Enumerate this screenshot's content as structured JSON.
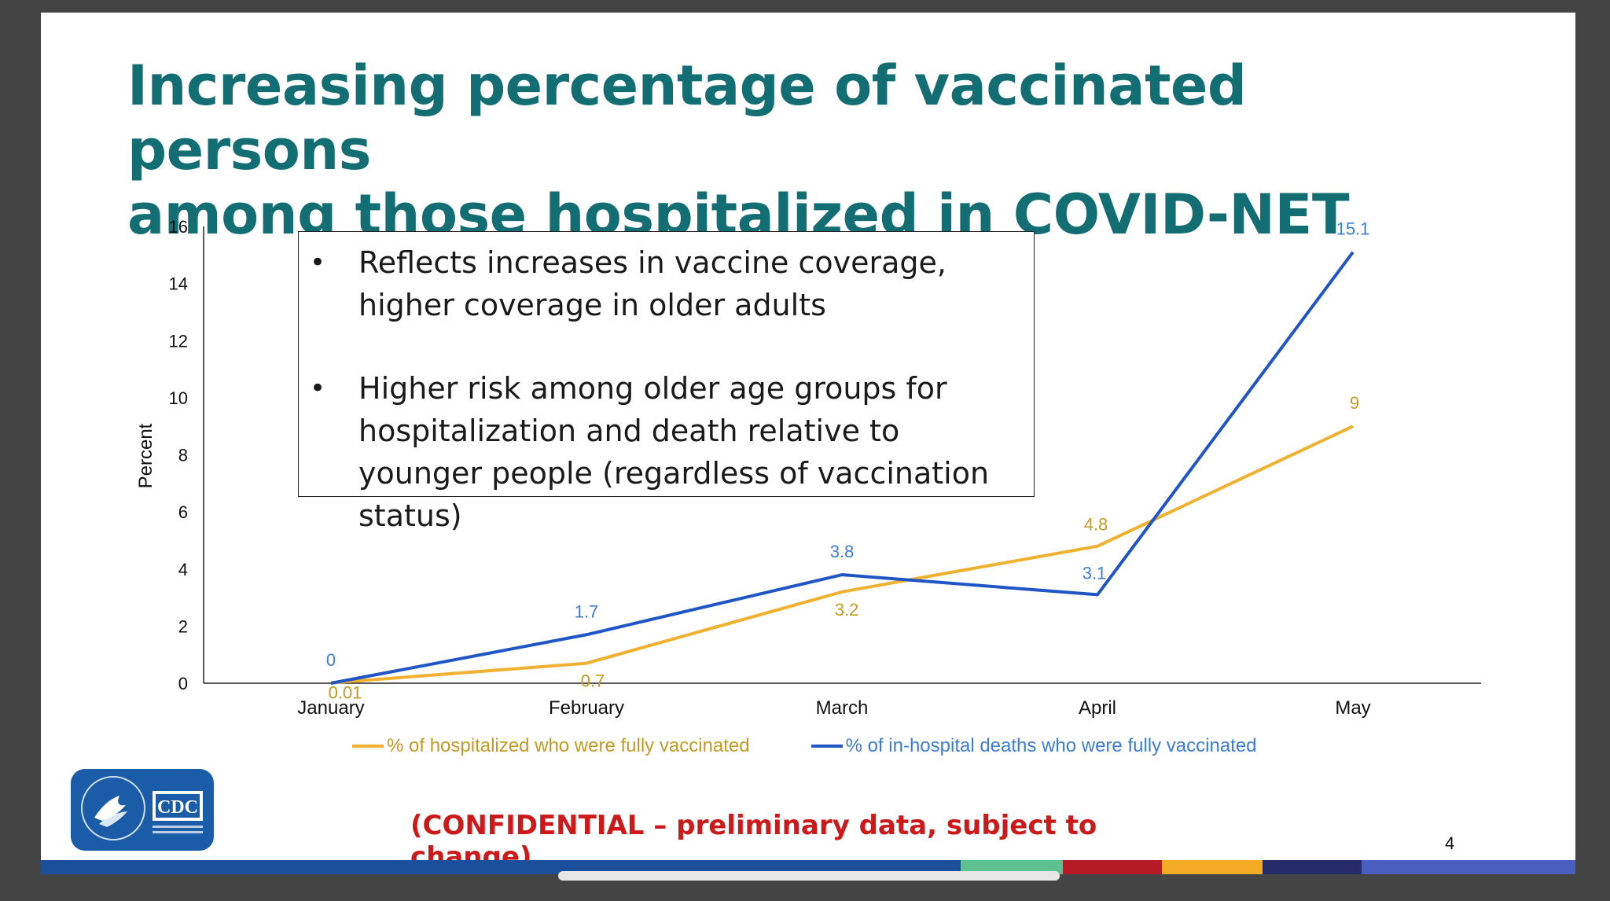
{
  "slide": {
    "title_line1": "Increasing percentage of vaccinated persons",
    "title_line2": "among those hospitalized in COVID-NET",
    "callout": {
      "bullet_char": "•",
      "bullet1": "Reflects increases in vaccine coverage, higher coverage in older adults",
      "bullet2": "Higher risk among older age groups for hospitalization and death relative to younger people (regardless of vaccination status)"
    },
    "confidential": "(CONFIDENTIAL – preliminary data, subject to change)",
    "page_number": "4",
    "logo_text": "CDC"
  },
  "colors": {
    "title": "#136e73",
    "series_hosp": "#f0b030",
    "series_hosp_label": "#c59a22",
    "series_death": "#1f55c4",
    "series_death_label": "#3c7dd6",
    "stripe": [
      "#1b4f9c",
      "#5ec08e",
      "#b51a26",
      "#f5aa25",
      "#252b68",
      "#4a5ec0"
    ]
  },
  "chart_data": {
    "type": "line",
    "categories": [
      "January",
      "February",
      "March",
      "April",
      "May"
    ],
    "ylabel": "Percent",
    "xlabel": "",
    "ylim": [
      0,
      16
    ],
    "yticks": [
      0,
      2,
      4,
      6,
      8,
      10,
      12,
      14,
      16
    ],
    "series": [
      {
        "name": "% of hospitalized who were fully vaccinated",
        "values": [
          0.01,
          0.7,
          3.2,
          4.8,
          9
        ],
        "labels": [
          "0.01",
          "0.7",
          "3.2",
          "4.8",
          "9"
        ]
      },
      {
        "name": "% of in-hospital deaths who were fully vaccinated",
        "values": [
          0,
          1.7,
          3.8,
          3.1,
          15.1
        ],
        "labels": [
          "0",
          "1.7",
          "3.8",
          "3.1",
          "15.1"
        ]
      }
    ],
    "legend": "bottom"
  }
}
